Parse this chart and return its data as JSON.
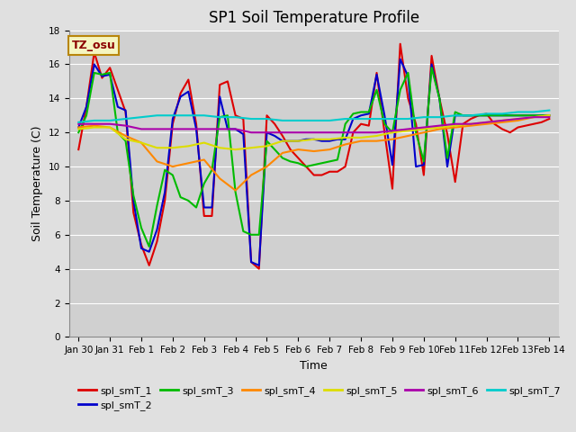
{
  "title": "SP1 Soil Temperature Profile",
  "xlabel": "Time",
  "ylabel": "Soil Temperature (C)",
  "ylim": [
    0,
    18
  ],
  "yticks": [
    0,
    2,
    4,
    6,
    8,
    10,
    12,
    14,
    16,
    18
  ],
  "fig_facecolor": "#e0e0e0",
  "plot_bg_color": "#d0d0d0",
  "annotation_text": "TZ_osu",
  "annotation_color": "#8B0000",
  "annotation_bg": "#f5f5c0",
  "annotation_border": "#b8860b",
  "series": {
    "spl_smT_1": {
      "color": "#dd0000",
      "linewidth": 1.5,
      "data_x": [
        0.0,
        0.25,
        0.5,
        0.75,
        1.0,
        1.25,
        1.5,
        1.75,
        2.0,
        2.25,
        2.5,
        2.75,
        3.0,
        3.25,
        3.5,
        3.75,
        4.0,
        4.25,
        4.5,
        4.75,
        5.0,
        5.25,
        5.5,
        5.75,
        6.0,
        6.25,
        6.5,
        6.75,
        7.0,
        7.25,
        7.5,
        7.75,
        8.0,
        8.25,
        8.5,
        8.75,
        9.0,
        9.25,
        9.5,
        9.75,
        10.0,
        10.25,
        10.5,
        10.75,
        11.0,
        11.25,
        11.5,
        11.75,
        12.0,
        12.25,
        12.5,
        12.75,
        13.0,
        13.25,
        13.5,
        13.75,
        14.0,
        14.25,
        14.5,
        14.75,
        15.0
      ],
      "data_y": [
        11.0,
        13.5,
        16.7,
        15.2,
        15.8,
        14.5,
        13.2,
        7.3,
        5.4,
        4.2,
        5.6,
        8.0,
        12.5,
        14.3,
        15.1,
        12.5,
        7.1,
        7.1,
        14.8,
        15.0,
        13.0,
        12.8,
        4.4,
        4.0,
        13.0,
        12.5,
        11.8,
        11.0,
        10.5,
        10.0,
        9.5,
        9.5,
        9.7,
        9.7,
        10.0,
        12.0,
        12.5,
        12.4,
        15.5,
        12.0,
        8.7,
        17.2,
        14.0,
        12.5,
        9.5,
        16.5,
        14.0,
        11.9,
        9.1,
        12.5,
        12.8,
        13.0,
        13.1,
        12.5,
        12.2,
        12.0,
        12.3,
        12.4,
        12.5,
        12.6,
        12.8
      ]
    },
    "spl_smT_2": {
      "color": "#0000cc",
      "linewidth": 1.5,
      "data_x": [
        0.0,
        0.25,
        0.5,
        0.75,
        1.0,
        1.25,
        1.5,
        1.75,
        2.0,
        2.25,
        2.5,
        2.75,
        3.0,
        3.25,
        3.5,
        3.75,
        4.0,
        4.25,
        4.5,
        4.75,
        5.0,
        5.25,
        5.5,
        5.75,
        6.0,
        6.25,
        6.5,
        6.75,
        7.0,
        7.25,
        7.5,
        7.75,
        8.0,
        8.25,
        8.5,
        8.75,
        9.0,
        9.25,
        9.5,
        9.75,
        10.0,
        10.25,
        10.5,
        10.75,
        11.0,
        11.25,
        11.5,
        11.75,
        12.0,
        12.25,
        12.5,
        12.75,
        13.0,
        13.25,
        13.5,
        13.75,
        14.0,
        14.25,
        14.5,
        14.75,
        15.0
      ],
      "data_y": [
        12.3,
        13.5,
        16.0,
        15.3,
        15.4,
        13.5,
        13.3,
        8.0,
        5.2,
        5.0,
        6.3,
        8.5,
        12.8,
        14.1,
        14.4,
        12.2,
        7.6,
        7.6,
        14.1,
        12.2,
        12.2,
        11.9,
        4.4,
        4.2,
        12.0,
        11.8,
        11.5,
        11.5,
        11.5,
        11.6,
        11.6,
        11.5,
        11.5,
        11.6,
        11.6,
        12.8,
        13.0,
        13.1,
        15.4,
        13.0,
        10.1,
        16.3,
        15.3,
        10.0,
        10.1,
        16.0,
        14.0,
        10.0,
        13.0,
        13.0,
        13.0,
        13.0,
        13.0,
        13.0,
        13.0,
        13.0,
        13.0,
        13.0,
        13.0,
        13.0,
        13.0
      ]
    },
    "spl_smT_3": {
      "color": "#00bb00",
      "linewidth": 1.5,
      "data_x": [
        0.0,
        0.25,
        0.5,
        0.75,
        1.0,
        1.25,
        1.5,
        1.75,
        2.0,
        2.25,
        2.5,
        2.75,
        3.0,
        3.25,
        3.5,
        3.75,
        4.0,
        4.25,
        4.5,
        4.75,
        5.0,
        5.25,
        5.5,
        5.75,
        6.0,
        6.25,
        6.5,
        6.75,
        7.0,
        7.25,
        7.5,
        7.75,
        8.0,
        8.25,
        8.5,
        8.75,
        9.0,
        9.25,
        9.5,
        9.75,
        10.0,
        10.25,
        10.5,
        10.75,
        11.0,
        11.25,
        11.5,
        11.75,
        12.0,
        12.25,
        12.5,
        12.75,
        13.0,
        13.25,
        13.5,
        13.75,
        14.0,
        14.25,
        14.5,
        14.75,
        15.0
      ],
      "data_y": [
        12.0,
        13.0,
        15.5,
        15.4,
        15.5,
        12.0,
        11.5,
        8.3,
        6.4,
        5.3,
        7.7,
        9.8,
        9.5,
        8.2,
        8.0,
        7.6,
        9.0,
        9.8,
        12.9,
        13.0,
        8.5,
        6.2,
        6.0,
        6.0,
        11.5,
        11.0,
        10.5,
        10.3,
        10.2,
        10.0,
        10.1,
        10.2,
        10.3,
        10.4,
        12.5,
        13.1,
        13.2,
        13.2,
        14.5,
        12.5,
        12.0,
        14.5,
        15.5,
        12.0,
        10.3,
        15.8,
        14.0,
        10.5,
        13.2,
        13.0,
        13.0,
        13.0,
        13.0,
        13.0,
        13.0,
        13.0,
        13.0,
        13.0,
        13.0,
        13.0,
        13.0
      ]
    },
    "spl_smT_4": {
      "color": "#ff8800",
      "linewidth": 1.5,
      "data_x": [
        0.0,
        0.5,
        1.0,
        1.5,
        2.0,
        2.5,
        3.0,
        3.5,
        4.0,
        4.5,
        5.0,
        5.5,
        6.0,
        6.5,
        7.0,
        7.5,
        8.0,
        8.5,
        9.0,
        9.5,
        10.0,
        10.5,
        11.0,
        11.5,
        12.0,
        12.5,
        13.0,
        13.5,
        14.0,
        14.5,
        15.0
      ],
      "data_y": [
        12.3,
        12.4,
        12.3,
        11.8,
        11.4,
        10.3,
        10.0,
        10.2,
        10.4,
        9.3,
        8.6,
        9.5,
        10.0,
        10.8,
        11.0,
        10.9,
        11.0,
        11.3,
        11.5,
        11.5,
        11.6,
        11.8,
        12.0,
        12.2,
        12.3,
        12.4,
        12.5,
        12.6,
        12.7,
        12.9,
        13.0
      ]
    },
    "spl_smT_5": {
      "color": "#dddd00",
      "linewidth": 1.5,
      "data_x": [
        0.0,
        0.5,
        1.0,
        1.5,
        2.0,
        2.5,
        3.0,
        3.5,
        4.0,
        4.5,
        5.0,
        5.5,
        6.0,
        6.5,
        7.0,
        7.5,
        8.0,
        8.5,
        9.0,
        9.5,
        10.0,
        10.5,
        11.0,
        11.5,
        12.0,
        12.5,
        13.0,
        13.5,
        14.0,
        14.5,
        15.0
      ],
      "data_y": [
        12.2,
        12.3,
        12.3,
        11.6,
        11.4,
        11.1,
        11.1,
        11.2,
        11.4,
        11.1,
        11.0,
        11.1,
        11.2,
        11.5,
        11.5,
        11.6,
        11.6,
        11.7,
        11.7,
        11.8,
        12.0,
        12.1,
        12.2,
        12.3,
        12.4,
        12.5,
        12.6,
        12.7,
        12.8,
        12.9,
        13.0
      ]
    },
    "spl_smT_6": {
      "color": "#aa00aa",
      "linewidth": 1.5,
      "data_x": [
        0.0,
        0.5,
        1.0,
        1.5,
        2.0,
        2.5,
        3.0,
        3.5,
        4.0,
        4.5,
        5.0,
        5.5,
        6.0,
        6.5,
        7.0,
        7.5,
        8.0,
        8.5,
        9.0,
        9.5,
        10.0,
        10.5,
        11.0,
        11.5,
        12.0,
        12.5,
        13.0,
        13.5,
        14.0,
        14.5,
        15.0
      ],
      "data_y": [
        12.5,
        12.5,
        12.5,
        12.4,
        12.2,
        12.2,
        12.2,
        12.2,
        12.2,
        12.2,
        12.2,
        12.0,
        12.0,
        12.0,
        12.0,
        12.0,
        12.0,
        12.0,
        12.0,
        12.0,
        12.1,
        12.2,
        12.3,
        12.4,
        12.5,
        12.5,
        12.6,
        12.7,
        12.8,
        12.9,
        12.9
      ]
    },
    "spl_smT_7": {
      "color": "#00cccc",
      "linewidth": 1.5,
      "data_x": [
        0.0,
        0.5,
        1.0,
        1.5,
        2.0,
        2.5,
        3.0,
        3.5,
        4.0,
        4.5,
        5.0,
        5.5,
        6.0,
        6.5,
        7.0,
        7.5,
        8.0,
        8.5,
        9.0,
        9.5,
        10.0,
        10.5,
        11.0,
        11.5,
        12.0,
        12.5,
        13.0,
        13.5,
        14.0,
        14.5,
        15.0
      ],
      "data_y": [
        12.6,
        12.7,
        12.7,
        12.8,
        12.9,
        13.0,
        13.0,
        13.0,
        13.0,
        12.9,
        12.9,
        12.8,
        12.8,
        12.7,
        12.7,
        12.7,
        12.7,
        12.8,
        12.8,
        12.8,
        12.8,
        12.8,
        12.9,
        12.9,
        13.0,
        13.0,
        13.1,
        13.1,
        13.2,
        13.2,
        13.3
      ]
    }
  },
  "legend_order": [
    "spl_smT_1",
    "spl_smT_2",
    "spl_smT_3",
    "spl_smT_4",
    "spl_smT_5",
    "spl_smT_6",
    "spl_smT_7"
  ],
  "xtick_positions": [
    0,
    1,
    2,
    3,
    4,
    5,
    6,
    7,
    8,
    9,
    10,
    11,
    12,
    13,
    14,
    15
  ],
  "xtick_labels": [
    "Jan 30",
    "Jan 31",
    "Feb 1",
    "Feb 2",
    "Feb 3",
    "Feb 4",
    "Feb 5",
    "Feb 6",
    "Feb 7",
    "Feb 8",
    "Feb 9",
    "Feb 10",
    "Feb 11",
    "Feb 12",
    "Feb 13",
    "Feb 14"
  ],
  "grid_color": "#ffffff",
  "grid_linewidth": 0.8,
  "title_fontsize": 12,
  "label_fontsize": 9,
  "tick_fontsize": 7.5,
  "legend_fontsize": 8
}
